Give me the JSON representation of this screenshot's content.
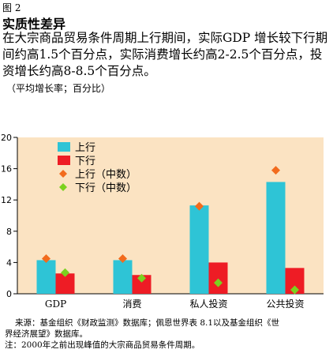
{
  "figure": {
    "label": "图 2",
    "title": "实质性差异",
    "subtitle": "在大宗商品贸易条件周期上行期间，实际GDP 增长较下行期间约高1.5个百分点，实际消费增长约高2-2.5个百分点，投资增长约高8-8.5个百分点。",
    "units": "（平均增长率；百分比）"
  },
  "chart_data": {
    "type": "bar",
    "categories": [
      "GDP",
      "消费",
      "私人投资",
      "公共投资"
    ],
    "series": [
      {
        "name": "上行",
        "kind": "bar",
        "color": "#2ec4d6",
        "values": [
          4.3,
          4.3,
          11.3,
          14.3
        ]
      },
      {
        "name": "下行",
        "kind": "bar",
        "color": "#ee1c25",
        "values": [
          2.6,
          2.4,
          4.0,
          3.3
        ]
      },
      {
        "name": "上行（中数）",
        "kind": "marker",
        "color": "#f26b1d",
        "values": [
          4.5,
          4.5,
          11.2,
          15.8
        ]
      },
      {
        "name": "下行（中数）",
        "kind": "marker",
        "color": "#7bd11f",
        "values": [
          2.7,
          2.0,
          1.4,
          0.5
        ]
      }
    ],
    "ylim": [
      0,
      20
    ],
    "yticks": [
      0,
      4,
      8,
      12,
      16,
      20
    ],
    "ytick_labels": [
      "0",
      "4",
      "8",
      "12",
      "16",
      "20"
    ],
    "legend_position": "top-left",
    "grid": false,
    "background_color": "#fbe3c2"
  },
  "notes": {
    "source_line1": "来源：基金组织《财政监测》数据库；佩恩世界表 8.1以及基金组织《世",
    "source_line2": "界经济展望》数据库。",
    "note": "注：2000年之前出现峰值的大宗商品贸易条件周期。"
  }
}
